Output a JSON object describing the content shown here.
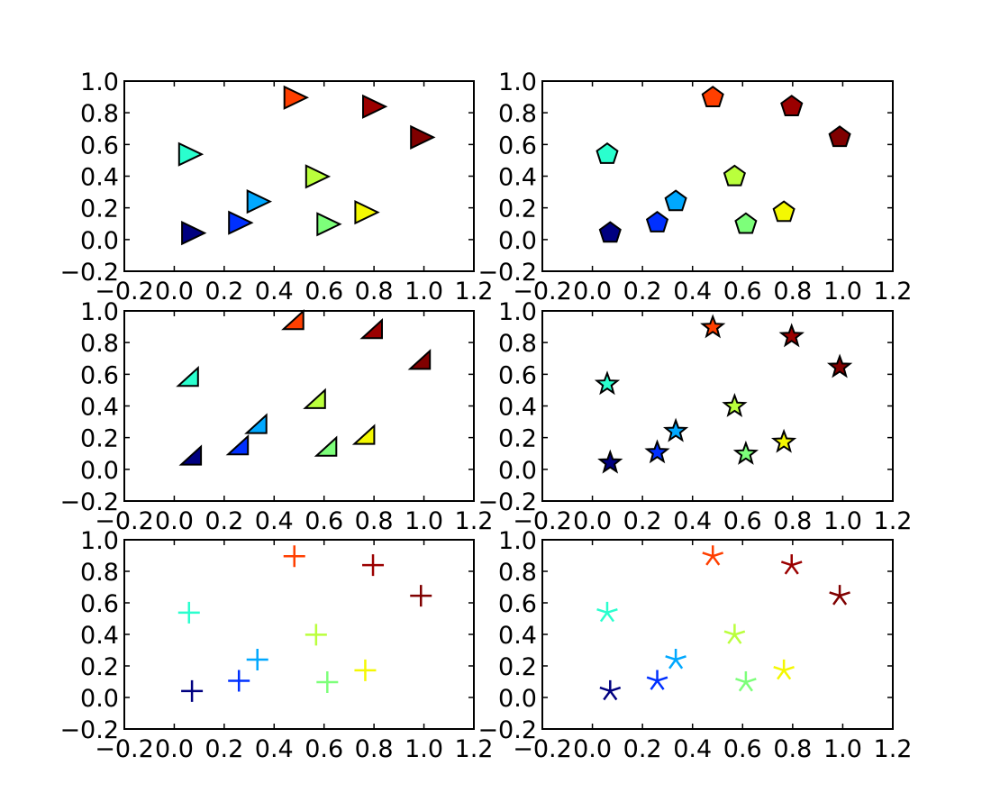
{
  "chart_data": [
    {
      "type": "scatter",
      "marker": "triangle-right",
      "edgecolor": "#000000",
      "xlim": [
        -0.2,
        1.2
      ],
      "ylim": [
        -0.2,
        1.0
      ],
      "grid": false
    },
    {
      "type": "scatter",
      "marker": "pentagon",
      "edgecolor": "#000000",
      "xlim": [
        -0.2,
        1.2
      ],
      "ylim": [
        -0.2,
        1.0
      ],
      "grid": false
    },
    {
      "type": "scatter",
      "marker": "right-triangle",
      "edgecolor": "#000000",
      "xlim": [
        -0.2,
        1.2
      ],
      "ylim": [
        -0.2,
        1.0
      ],
      "grid": false
    },
    {
      "type": "scatter",
      "marker": "star",
      "edgecolor": "#000000",
      "xlim": [
        -0.2,
        1.2
      ],
      "ylim": [
        -0.2,
        1.0
      ],
      "grid": false
    },
    {
      "type": "scatter",
      "marker": "plus",
      "xlim": [
        -0.2,
        1.2
      ],
      "ylim": [
        -0.2,
        1.0
      ],
      "grid": false
    },
    {
      "type": "scatter",
      "marker": "asterisk",
      "xlim": [
        -0.2,
        1.2
      ],
      "ylim": [
        -0.2,
        1.0
      ],
      "grid": false
    }
  ],
  "points": {
    "x": [
      0.071,
      0.259,
      0.333,
      0.059,
      0.613,
      0.568,
      0.765,
      0.481,
      0.796,
      0.988
    ],
    "y": [
      0.041,
      0.106,
      0.24,
      0.538,
      0.097,
      0.398,
      0.172,
      0.896,
      0.839,
      0.645
    ],
    "colors": [
      "#000080",
      "#0030ff",
      "#00a8ff",
      "#2affce",
      "#7dff7a",
      "#baff3c",
      "#f4f802",
      "#ff3f00",
      "#9b0000",
      "#800000"
    ]
  },
  "xticks": [
    "−0.2",
    "0.0",
    "0.2",
    "0.4",
    "0.6",
    "0.8",
    "1.0",
    "1.2"
  ],
  "yticks": [
    "−0.2",
    "0.0",
    "0.2",
    "0.4",
    "0.6",
    "0.8",
    "1.0"
  ]
}
